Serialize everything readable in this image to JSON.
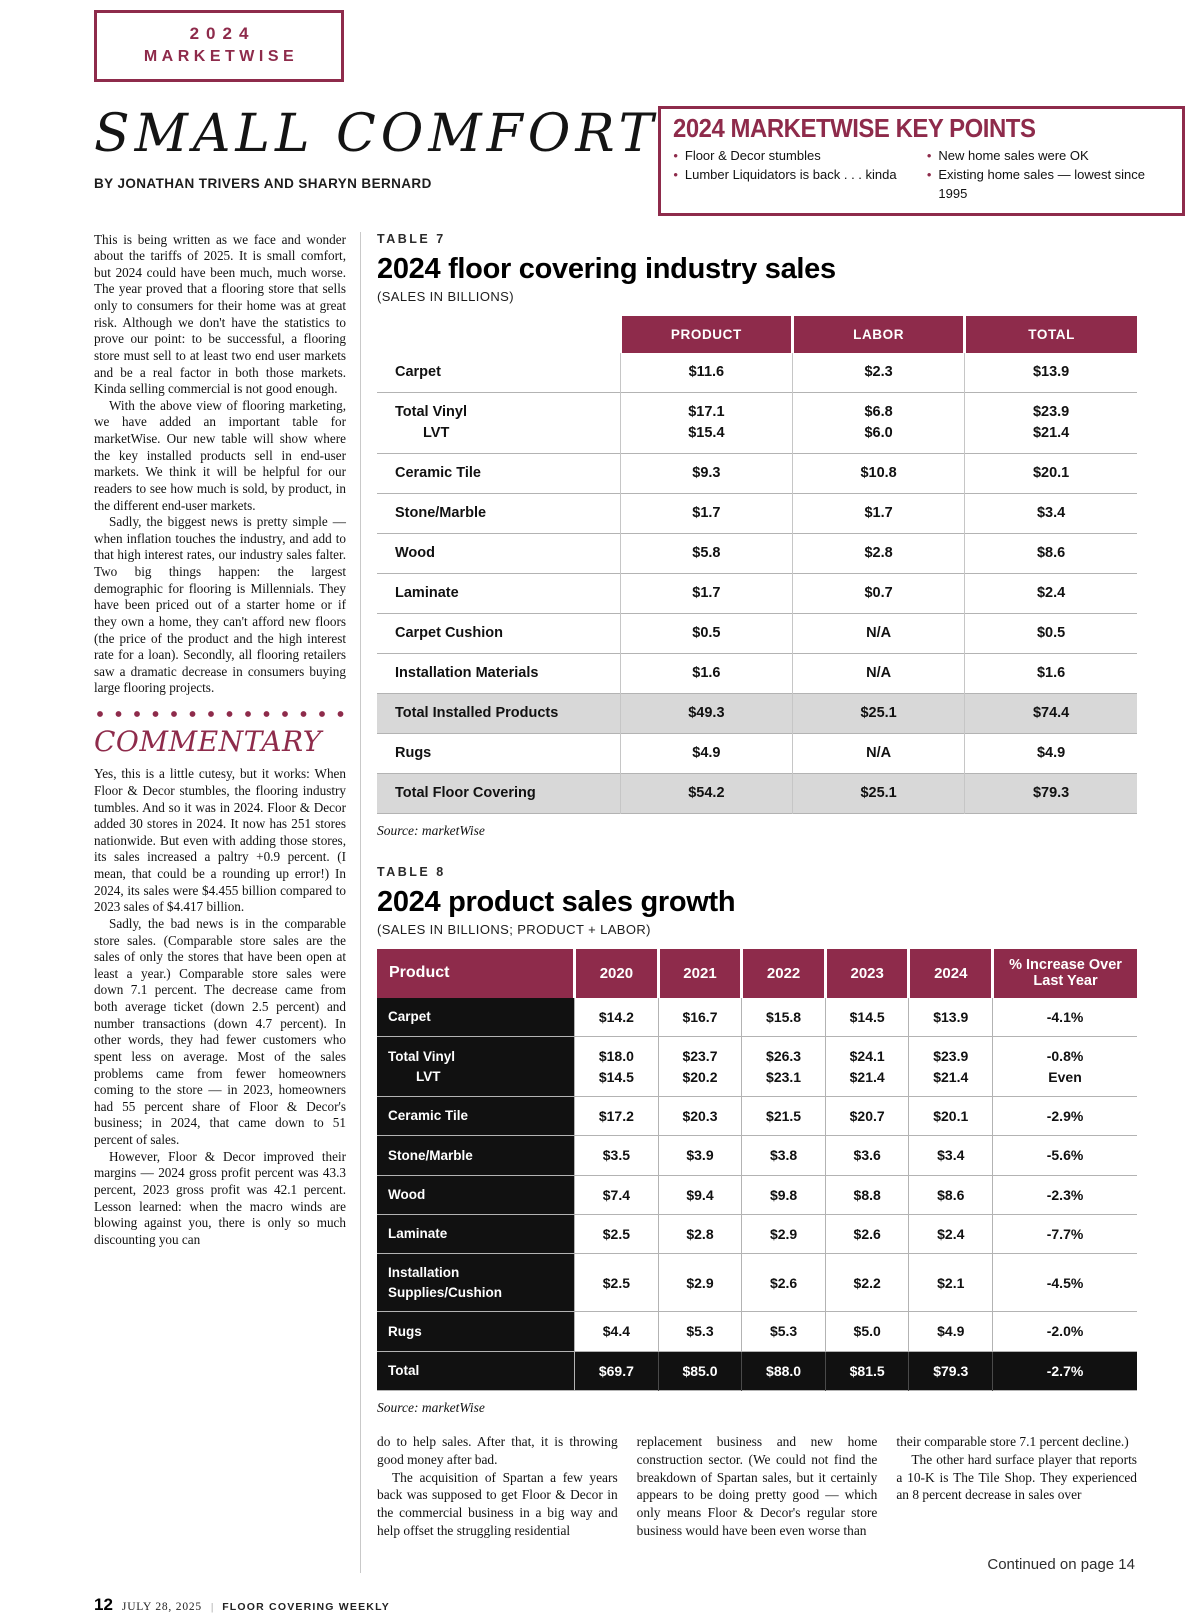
{
  "masthead": {
    "year": "2024",
    "title": "MARKETWISE"
  },
  "headline": "SMALL COMFORT",
  "byline": "BY JONATHAN TRIVERS AND SHARYN BERNARD",
  "key_points": {
    "title": "2024 MARKETWISE KEY POINTS",
    "items_left": [
      "Floor & Decor stumbles",
      "Lumber Liquidators is back . . . kinda"
    ],
    "items_right": [
      "New home sales were OK",
      "Existing home sales — lowest since 1995"
    ]
  },
  "intro": {
    "paragraphs": [
      "This is being written as we face and wonder about the tariffs of 2025. It is small comfort, but 2024 could have been much, much worse. The year proved that a flooring store that sells only to consumers for their home was at great risk. Although we don't have the statistics to prove our point: to be successful, a flooring store must sell to at least two end user markets and be a real factor in both those markets. Kinda selling commercial is not good enough.",
      "With the above view of flooring marketing, we have added an important table for marketWise. Our new table will show where the key installed products sell in end-user markets. We think it will be helpful for our readers to see how much is sold, by product, in the different end-user markets.",
      "Sadly, the biggest news is pretty simple — when inflation touches the industry, and add to that high interest rates, our industry sales falter. Two big things happen: the largest demographic for flooring is Millennials. They have been priced out of a starter home or if they own a home, they can't afford new floors (the price of the product and the high interest rate for a loan). Secondly, all flooring retailers saw a dramatic decrease in consumers buying large flooring projects."
    ]
  },
  "commentary": {
    "heading": "COMMENTARY",
    "paragraphs": [
      "Yes, this is a little cutesy, but it works: When Floor & Decor stumbles, the flooring industry tumbles. And so it was in 2024. Floor & Decor added 30 stores in 2024. It now has 251 stores nationwide. But even with adding those stores, its sales increased a paltry +0.9 percent. (I mean, that could be a rounding up error!) In 2024, its sales were $4.455 billion compared to 2023 sales of $4.417 billion.",
      "Sadly, the bad news is in the comparable store sales. (Comparable store sales are the sales of only the stores that have been open at least a year.) Comparable store sales were down 7.1 percent. The decrease came from both average ticket (down 2.5 percent) and number transactions (down 4.7 percent). In other words, they had fewer customers who spent less on average. Most of the sales problems came from fewer homeowners coming to the store — in 2023, homeowners had 55 percent share of Floor & Decor's business; in 2024, that came down to 51 percent of sales.",
      "However, Floor & Decor improved their margins — 2024 gross profit percent was 43.3 percent, 2023 gross profit was 42.1 percent. Lesson learned: when the macro winds are blowing against you, there is only so much discounting you can"
    ]
  },
  "table7": {
    "label": "TABLE 7",
    "title": "2024 floor covering industry sales",
    "subtitle": "(SALES IN BILLIONS)",
    "columns": [
      "PRODUCT",
      "LABOR",
      "TOTAL"
    ],
    "rows": [
      {
        "label": [
          "Carpet"
        ],
        "cells": [
          [
            "$11.6"
          ],
          [
            "$2.3"
          ],
          [
            "$13.9"
          ]
        ],
        "highlight": false
      },
      {
        "label": [
          "Total Vinyl",
          "LVT"
        ],
        "cells": [
          [
            "$17.1",
            "$15.4"
          ],
          [
            "$6.8",
            "$6.0"
          ],
          [
            "$23.9",
            "$21.4"
          ]
        ],
        "highlight": false
      },
      {
        "label": [
          "Ceramic Tile"
        ],
        "cells": [
          [
            "$9.3"
          ],
          [
            "$10.8"
          ],
          [
            "$20.1"
          ]
        ],
        "highlight": false
      },
      {
        "label": [
          "Stone/Marble"
        ],
        "cells": [
          [
            "$1.7"
          ],
          [
            "$1.7"
          ],
          [
            "$3.4"
          ]
        ],
        "highlight": false
      },
      {
        "label": [
          "Wood"
        ],
        "cells": [
          [
            "$5.8"
          ],
          [
            "$2.8"
          ],
          [
            "$8.6"
          ]
        ],
        "highlight": false
      },
      {
        "label": [
          "Laminate"
        ],
        "cells": [
          [
            "$1.7"
          ],
          [
            "$0.7"
          ],
          [
            "$2.4"
          ]
        ],
        "highlight": false
      },
      {
        "label": [
          "Carpet Cushion"
        ],
        "cells": [
          [
            "$0.5"
          ],
          [
            "N/A"
          ],
          [
            "$0.5"
          ]
        ],
        "highlight": false
      },
      {
        "label": [
          "Installation Materials"
        ],
        "cells": [
          [
            "$1.6"
          ],
          [
            "N/A"
          ],
          [
            "$1.6"
          ]
        ],
        "highlight": false
      },
      {
        "label": [
          "Total Installed Products"
        ],
        "cells": [
          [
            "$49.3"
          ],
          [
            "$25.1"
          ],
          [
            "$74.4"
          ]
        ],
        "highlight": true
      },
      {
        "label": [
          "Rugs"
        ],
        "cells": [
          [
            "$4.9"
          ],
          [
            "N/A"
          ],
          [
            "$4.9"
          ]
        ],
        "highlight": false
      },
      {
        "label": [
          "Total Floor Covering"
        ],
        "cells": [
          [
            "$54.2"
          ],
          [
            "$25.1"
          ],
          [
            "$79.3"
          ]
        ],
        "highlight": true
      }
    ],
    "source": "Source: marketWise"
  },
  "table8": {
    "label": "TABLE 8",
    "title": "2024 product sales growth",
    "subtitle": "(SALES IN BILLIONS; PRODUCT + LABOR)",
    "columns": [
      "Product",
      "2020",
      "2021",
      "2022",
      "2023",
      "2024",
      "% Increase Over Last Year"
    ],
    "rows": [
      {
        "label": [
          "Carpet"
        ],
        "cells": [
          [
            "$14.2"
          ],
          [
            "$16.7"
          ],
          [
            "$15.8"
          ],
          [
            "$14.5"
          ],
          [
            "$13.9"
          ],
          [
            "-4.1%"
          ]
        ],
        "total": false
      },
      {
        "label": [
          "Total Vinyl",
          "LVT"
        ],
        "cells": [
          [
            "$18.0",
            "$14.5"
          ],
          [
            "$23.7",
            "$20.2"
          ],
          [
            "$26.3",
            "$23.1"
          ],
          [
            "$24.1",
            "$21.4"
          ],
          [
            "$23.9",
            "$21.4"
          ],
          [
            "-0.8%",
            "Even"
          ]
        ],
        "total": false
      },
      {
        "label": [
          "Ceramic Tile"
        ],
        "cells": [
          [
            "$17.2"
          ],
          [
            "$20.3"
          ],
          [
            "$21.5"
          ],
          [
            "$20.7"
          ],
          [
            "$20.1"
          ],
          [
            "-2.9%"
          ]
        ],
        "total": false
      },
      {
        "label": [
          "Stone/Marble"
        ],
        "cells": [
          [
            "$3.5"
          ],
          [
            "$3.9"
          ],
          [
            "$3.8"
          ],
          [
            "$3.6"
          ],
          [
            "$3.4"
          ],
          [
            "-5.6%"
          ]
        ],
        "total": false
      },
      {
        "label": [
          "Wood"
        ],
        "cells": [
          [
            "$7.4"
          ],
          [
            "$9.4"
          ],
          [
            "$9.8"
          ],
          [
            "$8.8"
          ],
          [
            "$8.6"
          ],
          [
            "-2.3%"
          ]
        ],
        "total": false
      },
      {
        "label": [
          "Laminate"
        ],
        "cells": [
          [
            "$2.5"
          ],
          [
            "$2.8"
          ],
          [
            "$2.9"
          ],
          [
            "$2.6"
          ],
          [
            "$2.4"
          ],
          [
            "-7.7%"
          ]
        ],
        "total": false
      },
      {
        "label": [
          "Installation Supplies/Cushion"
        ],
        "cells": [
          [
            "$2.5"
          ],
          [
            "$2.9"
          ],
          [
            "$2.6"
          ],
          [
            "$2.2"
          ],
          [
            "$2.1"
          ],
          [
            "-4.5%"
          ]
        ],
        "total": false
      },
      {
        "label": [
          "Rugs"
        ],
        "cells": [
          [
            "$4.4"
          ],
          [
            "$5.3"
          ],
          [
            "$5.3"
          ],
          [
            "$5.0"
          ],
          [
            "$4.9"
          ],
          [
            "-2.0%"
          ]
        ],
        "total": false
      },
      {
        "label": [
          "Total"
        ],
        "cells": [
          [
            "$69.7"
          ],
          [
            "$85.0"
          ],
          [
            "$88.0"
          ],
          [
            "$81.5"
          ],
          [
            "$79.3"
          ],
          [
            "-2.7%"
          ]
        ],
        "total": true
      }
    ],
    "source": "Source: marketWise"
  },
  "bottom": {
    "columns": [
      [
        "do to help sales. After that, it is throwing good money after bad.",
        "The acquisition of Spartan a few years back was supposed to get Floor & Decor in the commercial business in a big way and help offset the struggling residential"
      ],
      [
        "replacement business and new home construction sector. (We could not find the breakdown of Spartan sales, but it certainly appears to be doing pretty good — which only means Floor & Decor's regular store business would have been even worse than"
      ],
      [
        "their comparable store 7.1 percent decline.)",
        "The other hard surface player that reports a 10-K is The Tile Shop. They experienced an 8 percent decrease in sales over"
      ]
    ],
    "continued": "Continued on page 14"
  },
  "footer": {
    "page_number": "12",
    "date": "JULY 28, 2025",
    "separator": "|",
    "publication": "FLOOR COVERING WEEKLY"
  }
}
